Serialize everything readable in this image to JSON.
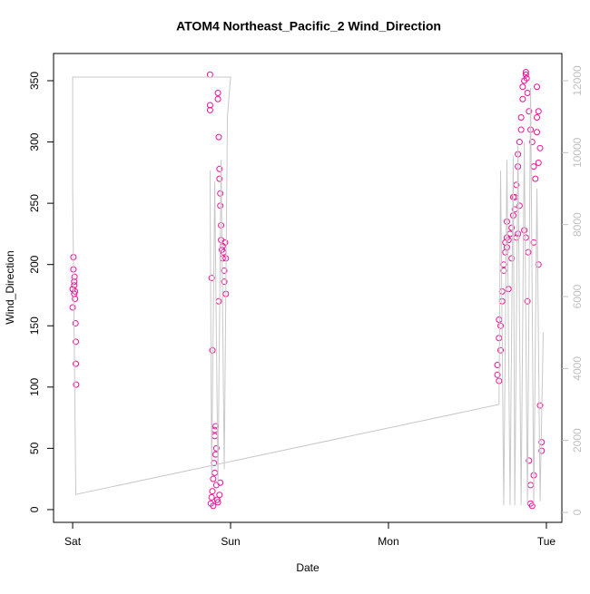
{
  "chart_data": {
    "type": "scatter",
    "title": "ATOM4 Northeast_Pacific_2 Wind_Direction",
    "xlabel": "Date",
    "ylabel": "Wind_Direction",
    "xlim": [
      -0.121,
      3.098
    ],
    "xticks": [
      {
        "value": 0,
        "label": "Sat"
      },
      {
        "value": 1,
        "label": "Sun"
      },
      {
        "value": 2,
        "label": "Mon"
      },
      {
        "value": 3,
        "label": "Tue"
      }
    ],
    "ylim": [
      -10.4,
      372.2
    ],
    "yticks": [
      0,
      50,
      100,
      150,
      200,
      250,
      300,
      350
    ],
    "y2lim": [
      -277,
      12756
    ],
    "y2ticks": [
      0,
      2000,
      4000,
      6000,
      8000,
      10000,
      12000
    ],
    "y2color": "#c0c0c0",
    "series": [
      {
        "color": "#ee1199",
        "x": [
          0.0,
          0.0,
          0.005,
          0.005,
          0.01,
          0.01,
          0.012,
          0.015,
          0.015,
          0.018,
          0.02,
          0.02,
          0.022,
          0.01,
          0.87,
          0.87,
          0.87,
          0.88,
          0.885,
          0.875,
          0.88,
          0.885,
          0.89,
          0.89,
          0.895,
          0.9,
          0.9,
          0.905,
          0.905,
          0.91,
          0.91,
          0.915,
          0.92,
          0.92,
          0.925,
          0.925,
          0.93,
          0.93,
          0.935,
          0.935,
          0.94,
          0.94,
          0.945,
          0.95,
          0.95,
          0.955,
          0.96,
          0.96,
          0.965,
          0.97,
          0.97,
          0.93,
          0.935,
          0.92,
          0.9,
          2.69,
          2.69,
          2.7,
          2.7,
          2.7,
          2.71,
          2.71,
          2.72,
          2.72,
          2.73,
          2.73,
          2.74,
          2.74,
          2.75,
          2.75,
          2.76,
          2.77,
          2.78,
          2.79,
          2.8,
          2.8,
          2.81,
          2.82,
          2.82,
          2.83,
          2.84,
          2.84,
          2.85,
          2.85,
          2.86,
          2.87,
          2.87,
          2.875,
          2.88,
          2.89,
          2.9,
          2.91,
          2.92,
          2.93,
          2.94,
          2.94,
          2.95,
          2.96,
          2.97,
          2.97,
          2.88,
          2.885,
          2.89,
          2.9,
          2.9,
          2.91,
          2.92,
          2.82,
          2.81,
          2.78,
          2.76,
          2.75,
          2.79,
          2.83,
          2.86,
          2.87,
          2.92,
          2.95,
          2.96,
          2.94,
          2.95
        ],
        "values": [
          165,
          180,
          196,
          206,
          186,
          176,
          190,
          172,
          178,
          152,
          137,
          119,
          102,
          183,
          355,
          330,
          326,
          189,
          130,
          5,
          10,
          15,
          3,
          25,
          38,
          60,
          65,
          68,
          45,
          50,
          20,
          8,
          340,
          335,
          304,
          170,
          278,
          270,
          258,
          248,
          232,
          220,
          212,
          205,
          215,
          210,
          195,
          186,
          218,
          205,
          176,
          12,
          22,
          6,
          30,
          110,
          118,
          105,
          140,
          155,
          150,
          130,
          170,
          178,
          195,
          200,
          210,
          218,
          222,
          214,
          220,
          225,
          230,
          240,
          245,
          255,
          265,
          280,
          290,
          300,
          320,
          310,
          335,
          345,
          350,
          355,
          357,
          352,
          340,
          325,
          310,
          300,
          280,
          270,
          345,
          320,
          200,
          85,
          55,
          48,
          170,
          210,
          40,
          20,
          5,
          3,
          28,
          225,
          222,
          205,
          180,
          235,
          255,
          248,
          228,
          222,
          218,
          283,
          295,
          308,
          325
        ]
      },
      {
        "type": "line",
        "axis": "y2",
        "color": "#c8c8c8",
        "x": [
          0.87,
          0.88,
          0.9,
          0.92,
          0.94,
          0.96,
          0.98,
          1.0,
          0.0,
          0.0,
          0.02,
          2.7,
          2.71,
          2.73,
          2.75,
          2.77,
          2.79,
          2.8,
          2.82,
          2.84,
          2.86,
          2.88,
          2.9,
          2.92,
          2.94,
          2.96,
          2.98
        ],
        "values": [
          9500,
          1000,
          9200,
          800,
          9800,
          1200,
          11000,
          12100,
          12100,
          9000,
          500,
          3000,
          9500,
          200,
          9800,
          200,
          9900,
          200,
          10200,
          200,
          10300,
          200,
          11800,
          200,
          9000,
          300,
          5000
        ]
      }
    ]
  }
}
